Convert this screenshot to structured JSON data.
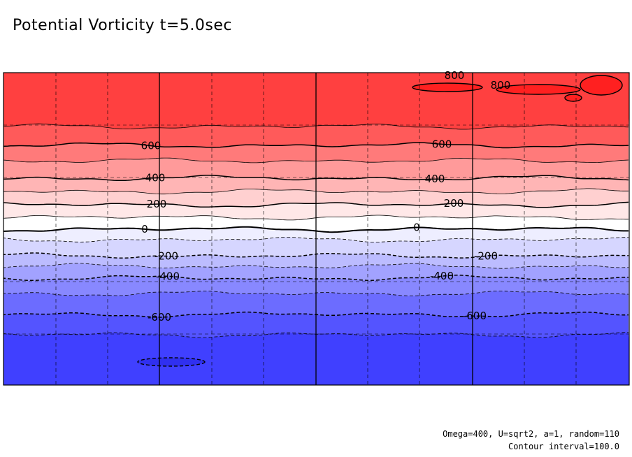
{
  "chart_data": {
    "type": "contour",
    "title": "Potential Vorticity t=5.0sec",
    "contour_interval": 100.0,
    "levels": [
      800,
      700,
      600,
      500,
      400,
      300,
      200,
      100,
      0,
      -100,
      -200,
      -300,
      -400,
      -500,
      -600,
      -700
    ],
    "band_colors": [
      "#ff4040",
      "#ff5a5a",
      "#ff7a7a",
      "#ff9a9a",
      "#ffb5b5",
      "#ffd0d0",
      "#ffe8e8",
      "#ffffff",
      "#eeeeff",
      "#d6d6ff",
      "#bcbcff",
      "#a2a2ff",
      "#8888ff",
      "#6c6cff",
      "#5454ff",
      "#4040ff"
    ],
    "labeled_contours": [
      {
        "value": 800,
        "labels": [
          "800",
          "800"
        ]
      },
      {
        "value": 600,
        "labels": [
          "600",
          "600"
        ]
      },
      {
        "value": 400,
        "labels": [
          "400",
          "400"
        ]
      },
      {
        "value": 200,
        "labels": [
          "200",
          "200"
        ]
      },
      {
        "value": 0,
        "labels": [
          "0",
          "0"
        ]
      },
      {
        "value": -200,
        "labels": [
          "-200",
          "-200"
        ]
      },
      {
        "value": -400,
        "labels": [
          "-400",
          "-400"
        ]
      },
      {
        "value": -600,
        "labels": [
          "-600",
          "-600"
        ]
      }
    ],
    "grid": true,
    "negative_contours_dashed": true
  },
  "footnote": {
    "params": "Omega=400, U=sqrt2, a=1, random=110",
    "interval": "Contour interval=100.0"
  }
}
